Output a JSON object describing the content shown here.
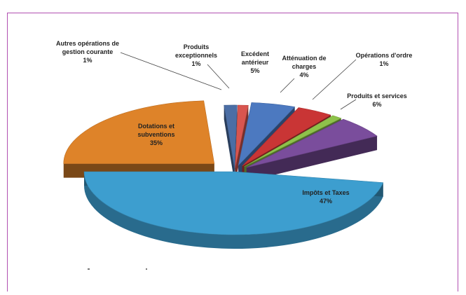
{
  "chart_data": {
    "type": "pie",
    "title": "",
    "slices": [
      {
        "label": "Impôts et Taxes",
        "value": 47,
        "display": "47%",
        "color": "#3d9ecf"
      },
      {
        "label": "Dotations et subventions",
        "value": 35,
        "display": "35%",
        "color": "#de8329"
      },
      {
        "label": "Autres opérations de gestion courante",
        "value": 1,
        "display": "1%",
        "color": "#4b6ea5"
      },
      {
        "label": "Produits exceptionnels",
        "value": 1,
        "display": "1%",
        "color": "#d8554f"
      },
      {
        "label": "Excédent antérieur",
        "value": 5,
        "display": "5%",
        "color": "#4c79c0"
      },
      {
        "label": "Atténuation de charges",
        "value": 4,
        "display": "4%",
        "color": "#c93535"
      },
      {
        "label": "Opérations d'ordre",
        "value": 1,
        "display": "1%",
        "color": "#8ec24a"
      },
      {
        "label": "Produits et services",
        "value": 6,
        "display": "6%",
        "color": "#7a4d9c"
      }
    ]
  }
}
